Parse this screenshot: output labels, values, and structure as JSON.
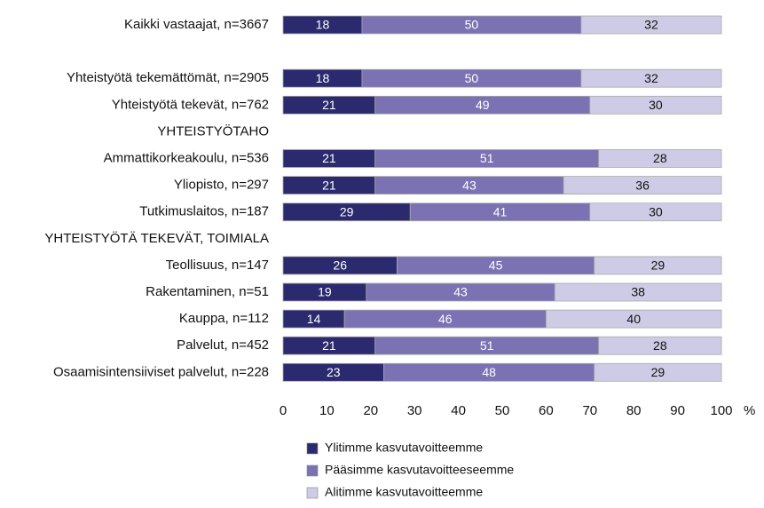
{
  "chart_data": {
    "type": "stacked_barh",
    "categories": [
      "Kaikki vastaajat, n=3667",
      null,
      "Yhteistyötä tekemättömät, n=2905",
      "Yhteistyötä tekevät, n=762",
      "YHTEISTYÖTAHO",
      "Ammattikorkeakoulu, n=536",
      "Yliopisto, n=297",
      "Tutkimuslaitos, n=187",
      "YHTEISTYÖTÄ TEKEVÄT, TOIMIALA",
      "Teollisuus, n=147",
      "Rakentaminen, n=51",
      "Kauppa, n=112",
      "Palvelut, n=452",
      "Osaamisintensiiviset palvelut, n=228"
    ],
    "series": [
      {
        "name": "Ylitimme kasvutavoitteemme",
        "color": "#2c2a6f",
        "values": [
          18,
          null,
          18,
          21,
          null,
          21,
          21,
          29,
          null,
          26,
          19,
          14,
          21,
          23
        ]
      },
      {
        "name": "Pääsimme kasvutavoitteeseemme",
        "color": "#7a72b3",
        "values": [
          50,
          null,
          50,
          49,
          null,
          51,
          43,
          41,
          null,
          45,
          43,
          46,
          51,
          48
        ]
      },
      {
        "name": "Alitimme kasvutavoitteemme",
        "color": "#cdcbe5",
        "values": [
          32,
          null,
          32,
          30,
          null,
          28,
          36,
          30,
          null,
          29,
          38,
          40,
          28,
          29
        ]
      }
    ],
    "xlim": [
      0,
      100
    ],
    "xticks": [
      0,
      10,
      20,
      30,
      40,
      50,
      60,
      70,
      80,
      90,
      100
    ],
    "xlabel": "%",
    "grid": false
  }
}
